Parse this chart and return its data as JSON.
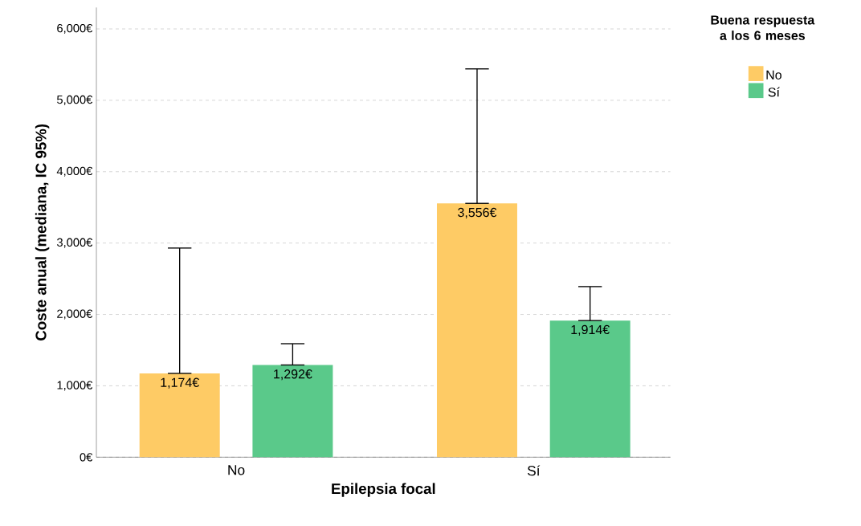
{
  "chart_data": {
    "type": "bar",
    "xlabel": "Epilepsia focal",
    "ylabel": "Coste anual (mediana, IC 95%)",
    "legend_title": "Buena respuesta a los 6 meses",
    "categories": [
      "No",
      "Sí"
    ],
    "series": [
      {
        "name": "No",
        "color": "#fecb65",
        "values": [
          1174,
          3556
        ],
        "errors": [
          [
            1174,
            2930
          ],
          [
            3556,
            5440
          ]
        ],
        "value_labels": [
          "1,174€",
          "3,556€"
        ]
      },
      {
        "name": "Sí",
        "color": "#5ac98a",
        "values": [
          1292,
          1914
        ],
        "errors": [
          [
            1292,
            1590
          ],
          [
            1914,
            2390
          ]
        ],
        "value_labels": [
          "1,292€",
          "1,914€"
        ]
      }
    ],
    "ylim": [
      0,
      6300
    ],
    "yticks": [
      {
        "value": 0,
        "label": "0€"
      },
      {
        "value": 1000,
        "label": "1,000€"
      },
      {
        "value": 2000,
        "label": "2,000€"
      },
      {
        "value": 3000,
        "label": "3,000€"
      },
      {
        "value": 4000,
        "label": "4,000€"
      },
      {
        "value": 5000,
        "label": "5,000€"
      },
      {
        "value": 6000,
        "label": "6,000€"
      }
    ],
    "grid": "y",
    "legend": "top right"
  }
}
